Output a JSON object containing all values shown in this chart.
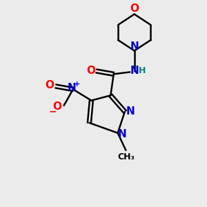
{
  "bg_color": "#ebebeb",
  "bond_color": "#000000",
  "N_color": "#0000cc",
  "O_color": "#ff0000",
  "H_color": "#008080",
  "line_width": 1.8,
  "font_size_atom": 11,
  "font_size_small": 9,
  "xlim": [
    0,
    10
  ],
  "ylim": [
    0,
    10
  ]
}
